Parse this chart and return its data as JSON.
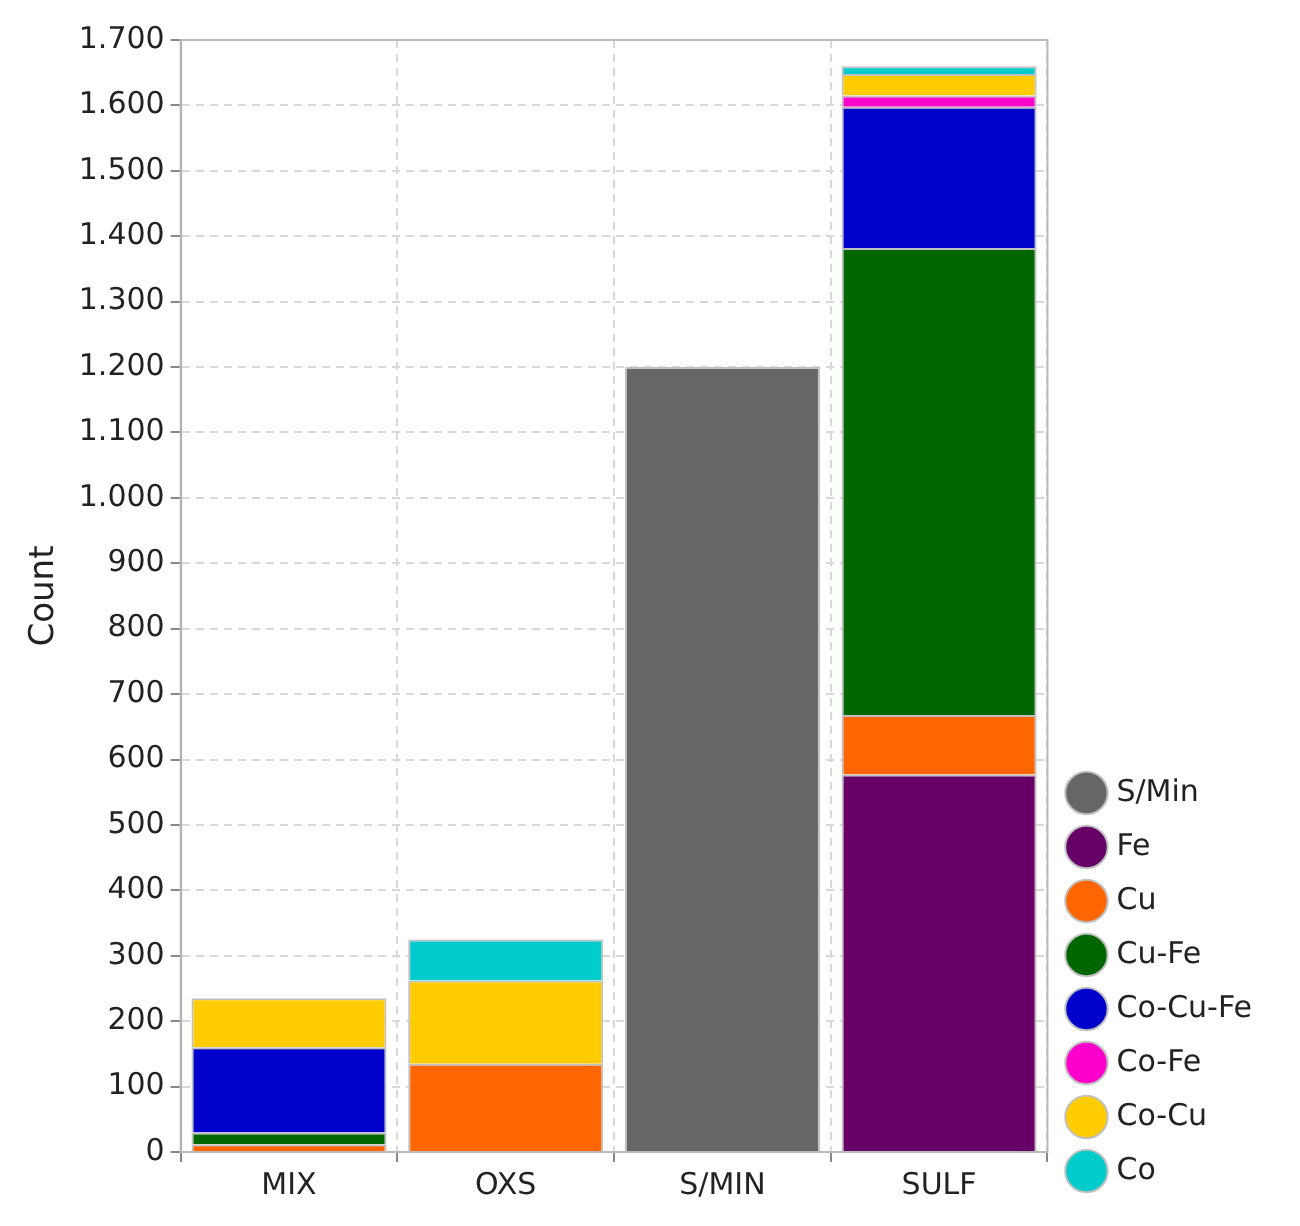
{
  "chart_data": {
    "type": "bar",
    "stacked": true,
    "ylabel": "Count",
    "categories": [
      "MIX",
      "OXS",
      "S/MIN",
      "SULF"
    ],
    "series": [
      {
        "name": "S/Min",
        "color": "#666666",
        "values": [
          null,
          null,
          1200,
          null
        ]
      },
      {
        "name": "Fe",
        "color": "#660066",
        "values": [
          null,
          null,
          null,
          577
        ]
      },
      {
        "name": "Cu",
        "color": "#ff6600",
        "values": [
          12,
          135,
          null,
          91
        ]
      },
      {
        "name": "Cu-Fe",
        "color": "#006600",
        "values": [
          18,
          null,
          null,
          714
        ]
      },
      {
        "name": "Co-Cu-Fe",
        "color": "#0000cc",
        "values": [
          130,
          null,
          null,
          216
        ]
      },
      {
        "name": "Co-Fe",
        "color": "#ff00cc",
        "values": [
          null,
          null,
          null,
          17
        ]
      },
      {
        "name": "Co-Cu",
        "color": "#ffcc00",
        "values": [
          75,
          127,
          null,
          33
        ]
      },
      {
        "name": "Co",
        "color": "#00cccc",
        "values": [
          null,
          63,
          null,
          12
        ]
      }
    ],
    "ylim": [
      0,
      1700
    ],
    "yticks": [
      0,
      100,
      200,
      300,
      400,
      500,
      600,
      700,
      800,
      900,
      {
        "value": 1000,
        "label": "1.000"
      },
      {
        "value": 1100,
        "label": "1.100"
      },
      {
        "value": 1200,
        "label": "1.200"
      },
      {
        "value": 1300,
        "label": "1.300"
      },
      {
        "value": 1400,
        "label": "1.400"
      },
      {
        "value": 1500,
        "label": "1.500"
      },
      {
        "value": 1600,
        "label": "1.600"
      },
      {
        "value": 1700,
        "label": "1.700"
      }
    ],
    "grid": true,
    "legend": "right"
  }
}
